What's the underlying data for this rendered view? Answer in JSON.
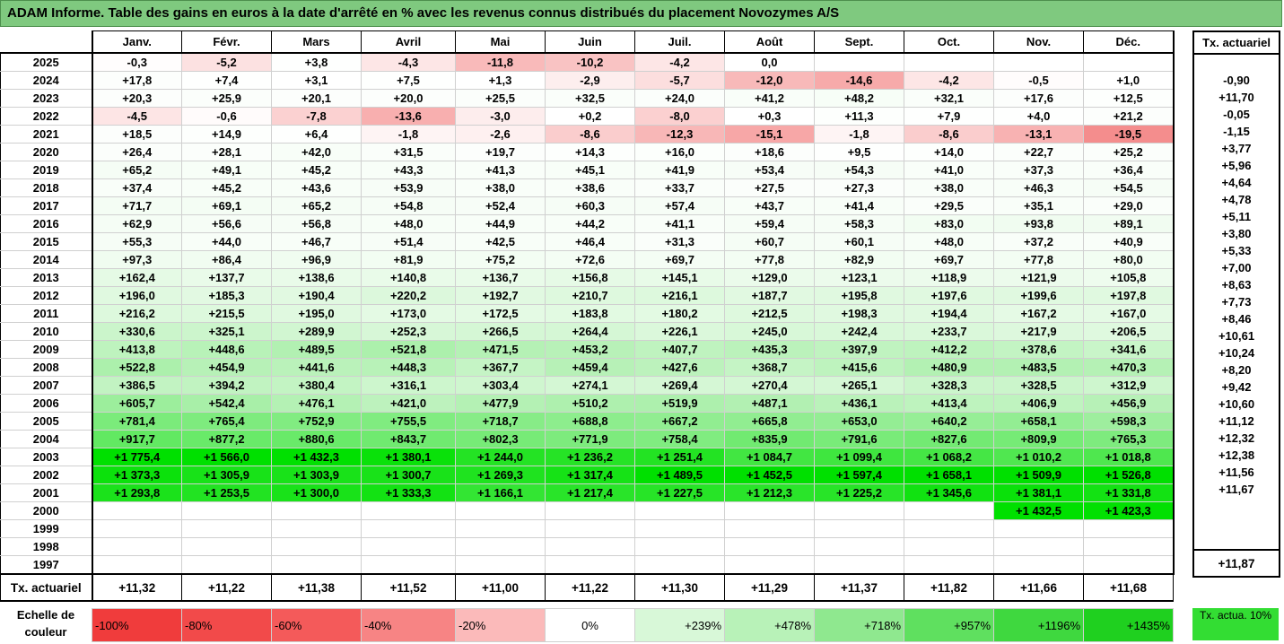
{
  "title": "ADAM Informe. Table des gains en euros à la date d'arrêté en % avec les revenus connus distribués du placement Novozymes A/S",
  "months": [
    "Janv.",
    "Févr.",
    "Mars",
    "Avril",
    "Mai",
    "Juin",
    "Juil.",
    "Août",
    "Sept.",
    "Oct.",
    "Nov.",
    "Déc."
  ],
  "side_header": "Tx. actuariel",
  "rows": [
    {
      "year": "2025",
      "cells": [
        "-0,3",
        "-5,2",
        "+3,8",
        "-4,3",
        "-11,8",
        "-10,2",
        "-4,2",
        "0,0",
        "",
        "",
        "",
        ""
      ],
      "tx": ""
    },
    {
      "year": "2024",
      "cells": [
        "+17,8",
        "+7,4",
        "+3,1",
        "+7,5",
        "+1,3",
        "-2,9",
        "-5,7",
        "-12,0",
        "-14,6",
        "-4,2",
        "-0,5",
        "+1,0"
      ],
      "tx": "-0,90"
    },
    {
      "year": "2023",
      "cells": [
        "+20,3",
        "+25,9",
        "+20,1",
        "+20,0",
        "+25,5",
        "+32,5",
        "+24,0",
        "+41,2",
        "+48,2",
        "+32,1",
        "+17,6",
        "+12,5"
      ],
      "tx": "+11,70"
    },
    {
      "year": "2022",
      "cells": [
        "-4,5",
        "-0,6",
        "-7,8",
        "-13,6",
        "-3,0",
        "+0,2",
        "-8,0",
        "+0,3",
        "+11,3",
        "+7,9",
        "+4,0",
        "+21,2"
      ],
      "tx": "-0,05"
    },
    {
      "year": "2021",
      "cells": [
        "+18,5",
        "+14,9",
        "+6,4",
        "-1,8",
        "-2,6",
        "-8,6",
        "-12,3",
        "-15,1",
        "-1,8",
        "-8,6",
        "-13,1",
        "-19,5"
      ],
      "tx": "-1,15"
    },
    {
      "year": "2020",
      "cells": [
        "+26,4",
        "+28,1",
        "+42,0",
        "+31,5",
        "+19,7",
        "+14,3",
        "+16,0",
        "+18,6",
        "+9,5",
        "+14,0",
        "+22,7",
        "+25,2"
      ],
      "tx": "+3,77"
    },
    {
      "year": "2019",
      "cells": [
        "+65,2",
        "+49,1",
        "+45,2",
        "+43,3",
        "+41,3",
        "+45,1",
        "+41,9",
        "+53,4",
        "+54,3",
        "+41,0",
        "+37,3",
        "+36,4"
      ],
      "tx": "+5,96"
    },
    {
      "year": "2018",
      "cells": [
        "+37,4",
        "+45,2",
        "+43,6",
        "+53,9",
        "+38,0",
        "+38,6",
        "+33,7",
        "+27,5",
        "+27,3",
        "+38,0",
        "+46,3",
        "+54,5"
      ],
      "tx": "+4,64"
    },
    {
      "year": "2017",
      "cells": [
        "+71,7",
        "+69,1",
        "+65,2",
        "+54,8",
        "+52,4",
        "+60,3",
        "+57,4",
        "+43,7",
        "+41,4",
        "+29,5",
        "+35,1",
        "+29,0"
      ],
      "tx": "+4,78"
    },
    {
      "year": "2016",
      "cells": [
        "+62,9",
        "+56,6",
        "+56,8",
        "+48,0",
        "+44,9",
        "+44,2",
        "+41,1",
        "+59,4",
        "+58,3",
        "+83,0",
        "+93,8",
        "+89,1"
      ],
      "tx": "+5,11"
    },
    {
      "year": "2015",
      "cells": [
        "+55,3",
        "+44,0",
        "+46,7",
        "+51,4",
        "+42,5",
        "+46,4",
        "+31,3",
        "+60,7",
        "+60,1",
        "+48,0",
        "+37,2",
        "+40,9"
      ],
      "tx": "+3,80"
    },
    {
      "year": "2014",
      "cells": [
        "+97,3",
        "+86,4",
        "+96,9",
        "+81,9",
        "+75,2",
        "+72,6",
        "+69,7",
        "+77,8",
        "+82,9",
        "+69,7",
        "+77,8",
        "+80,0"
      ],
      "tx": "+5,33"
    },
    {
      "year": "2013",
      "cells": [
        "+162,4",
        "+137,7",
        "+138,6",
        "+140,8",
        "+136,7",
        "+156,8",
        "+145,1",
        "+129,0",
        "+123,1",
        "+118,9",
        "+121,9",
        "+105,8"
      ],
      "tx": "+7,00"
    },
    {
      "year": "2012",
      "cells": [
        "+196,0",
        "+185,3",
        "+190,4",
        "+220,2",
        "+192,7",
        "+210,7",
        "+216,1",
        "+187,7",
        "+195,8",
        "+197,6",
        "+199,6",
        "+197,8"
      ],
      "tx": "+8,63"
    },
    {
      "year": "2011",
      "cells": [
        "+216,2",
        "+215,5",
        "+195,0",
        "+173,0",
        "+172,5",
        "+183,8",
        "+180,2",
        "+212,5",
        "+198,3",
        "+194,4",
        "+167,2",
        "+167,0"
      ],
      "tx": "+7,73"
    },
    {
      "year": "2010",
      "cells": [
        "+330,6",
        "+325,1",
        "+289,9",
        "+252,3",
        "+266,5",
        "+264,4",
        "+226,1",
        "+245,0",
        "+242,4",
        "+233,7",
        "+217,9",
        "+206,5"
      ],
      "tx": "+8,46"
    },
    {
      "year": "2009",
      "cells": [
        "+413,8",
        "+448,6",
        "+489,5",
        "+521,8",
        "+471,5",
        "+453,2",
        "+407,7",
        "+435,3",
        "+397,9",
        "+412,2",
        "+378,6",
        "+341,6"
      ],
      "tx": "+10,61"
    },
    {
      "year": "2008",
      "cells": [
        "+522,8",
        "+454,9",
        "+441,6",
        "+448,3",
        "+367,7",
        "+459,4",
        "+427,6",
        "+368,7",
        "+415,6",
        "+480,9",
        "+483,5",
        "+470,3"
      ],
      "tx": "+10,24"
    },
    {
      "year": "2007",
      "cells": [
        "+386,5",
        "+394,2",
        "+380,4",
        "+316,1",
        "+303,4",
        "+274,1",
        "+269,4",
        "+270,4",
        "+265,1",
        "+328,3",
        "+328,5",
        "+312,9"
      ],
      "tx": "+8,20"
    },
    {
      "year": "2006",
      "cells": [
        "+605,7",
        "+542,4",
        "+476,1",
        "+421,0",
        "+477,9",
        "+510,2",
        "+519,9",
        "+487,1",
        "+436,1",
        "+413,4",
        "+406,9",
        "+456,9"
      ],
      "tx": "+9,42"
    },
    {
      "year": "2005",
      "cells": [
        "+781,4",
        "+765,4",
        "+752,9",
        "+755,5",
        "+718,7",
        "+688,8",
        "+667,2",
        "+665,8",
        "+653,0",
        "+640,2",
        "+658,1",
        "+598,3"
      ],
      "tx": "+10,60"
    },
    {
      "year": "2004",
      "cells": [
        "+917,7",
        "+877,2",
        "+880,6",
        "+843,7",
        "+802,3",
        "+771,9",
        "+758,4",
        "+835,9",
        "+791,6",
        "+827,6",
        "+809,9",
        "+765,3"
      ],
      "tx": "+11,12"
    },
    {
      "year": "2003",
      "cells": [
        "+1 775,4",
        "+1 566,0",
        "+1 432,3",
        "+1 380,1",
        "+1 244,0",
        "+1 236,2",
        "+1 251,4",
        "+1 084,7",
        "+1 099,4",
        "+1 068,2",
        "+1 010,2",
        "+1 018,8"
      ],
      "tx": "+12,32"
    },
    {
      "year": "2002",
      "cells": [
        "+1 373,3",
        "+1 305,9",
        "+1 303,9",
        "+1 300,7",
        "+1 269,3",
        "+1 317,4",
        "+1 489,5",
        "+1 452,5",
        "+1 597,4",
        "+1 658,1",
        "+1 509,9",
        "+1 526,8"
      ],
      "tx": "+12,38"
    },
    {
      "year": "2001",
      "cells": [
        "+1 293,8",
        "+1 253,5",
        "+1 300,0",
        "+1 333,3",
        "+1 166,1",
        "+1 217,4",
        "+1 227,5",
        "+1 212,3",
        "+1 225,2",
        "+1 345,6",
        "+1 381,1",
        "+1 331,8"
      ],
      "tx": "+11,56"
    },
    {
      "year": "2000",
      "cells": [
        "",
        "",
        "",
        "",
        "",
        "",
        "",
        "",
        "",
        "",
        "+1 432,5",
        "+1 423,3"
      ],
      "tx": "+11,67"
    },
    {
      "year": "1999",
      "cells": [
        "",
        "",
        "",
        "",
        "",
        "",
        "",
        "",
        "",
        "",
        "",
        ""
      ],
      "tx": ""
    },
    {
      "year": "1998",
      "cells": [
        "",
        "",
        "",
        "",
        "",
        "",
        "",
        "",
        "",
        "",
        "",
        ""
      ],
      "tx": ""
    },
    {
      "year": "1997",
      "cells": [
        "",
        "",
        "",
        "",
        "",
        "",
        "",
        "",
        "",
        "",
        "",
        ""
      ],
      "tx": ""
    }
  ],
  "footer": {
    "label": "Tx. actuariel",
    "values": [
      "+11,32",
      "+11,22",
      "+11,38",
      "+11,52",
      "+11,00",
      "+11,22",
      "+11,30",
      "+11,29",
      "+11,37",
      "+11,82",
      "+11,66",
      "+11,68"
    ],
    "total": "+11,87"
  },
  "scale": {
    "label": "Echelle de couleur",
    "items": [
      {
        "text": "-100%",
        "color": "#f03c3c",
        "align": "left"
      },
      {
        "text": "-80%",
        "color": "#f24a4a",
        "align": "left"
      },
      {
        "text": "-60%",
        "color": "#f45a5a",
        "align": "left"
      },
      {
        "text": "-40%",
        "color": "#f78484",
        "align": "left"
      },
      {
        "text": "-20%",
        "color": "#fbbaba",
        "align": "left"
      },
      {
        "text": "0%",
        "color": "#ffffff",
        "align": "center"
      },
      {
        "text": "+239%",
        "color": "#d8f8d8",
        "align": "right"
      },
      {
        "text": "+478%",
        "color": "#b8f2b8",
        "align": "right"
      },
      {
        "text": "+718%",
        "color": "#8fe88f",
        "align": "right"
      },
      {
        "text": "+957%",
        "color": "#5fe05f",
        "align": "right"
      },
      {
        "text": "+1196%",
        "color": "#3fd83f",
        "align": "right"
      },
      {
        "text": "+1435%",
        "color": "#1fd01f",
        "align": "right"
      }
    ],
    "side_text": "Tx. actua. 10%",
    "side_color": "#33dd33"
  }
}
